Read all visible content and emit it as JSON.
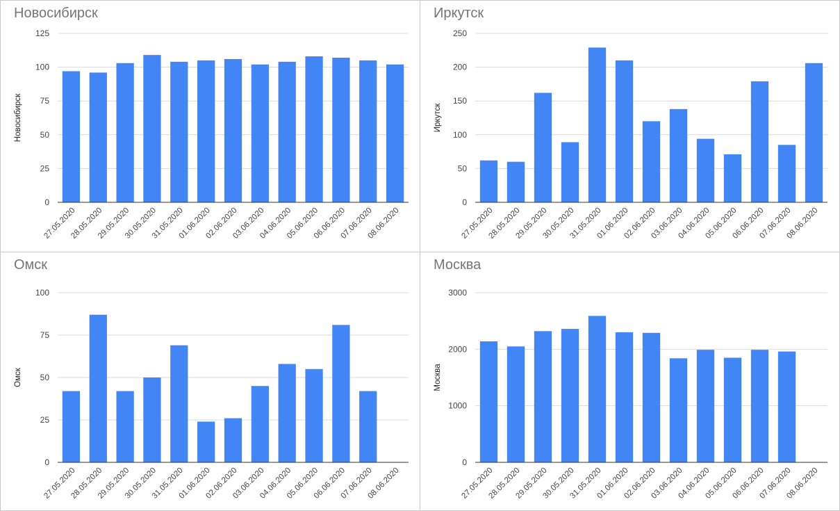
{
  "chart_data": [
    {
      "type": "bar",
      "title": "Новосибирск",
      "ylabel": "Новосибирск",
      "xlabel": "",
      "categories": [
        "27.05.2020",
        "28.05.2020",
        "29.05.2020",
        "30.05.2020",
        "31.05.2020",
        "01.06.2020",
        "02.06.2020",
        "03.06.2020",
        "04.06.2020",
        "05.06.2020",
        "06.06.2020",
        "07.06.2020",
        "08.06.2020"
      ],
      "values": [
        97,
        96,
        103,
        109,
        104,
        105,
        106,
        102,
        104,
        108,
        107,
        105,
        102
      ],
      "ylim": [
        0,
        125
      ],
      "yticks": [
        "0",
        "25",
        "50",
        "75",
        "100",
        "125"
      ],
      "color": "#4285f4",
      "grid": true
    },
    {
      "type": "bar",
      "title": "Иркутск",
      "ylabel": "Иркутск",
      "xlabel": "",
      "categories": [
        "27.05.2020",
        "28.05.2020",
        "29.05.2020",
        "30.05.2020",
        "31.05.2020",
        "01.06.2020",
        "02.06.2020",
        "03.06.2020",
        "04.06.2020",
        "05.06.2020",
        "06.06.2020",
        "07.06.2020",
        "08.06.2020"
      ],
      "values": [
        62,
        60,
        162,
        89,
        229,
        210,
        120,
        138,
        94,
        71,
        179,
        85,
        206
      ],
      "ylim": [
        0,
        250
      ],
      "yticks": [
        "0",
        "50",
        "100",
        "150",
        "200",
        "250"
      ],
      "color": "#4285f4",
      "grid": true
    },
    {
      "type": "bar",
      "title": "Омск",
      "ylabel": "Омск",
      "xlabel": "",
      "categories": [
        "27.05.2020",
        "28.05.2020",
        "29.05.2020",
        "30.05.2020",
        "31.05.2020",
        "01.06.2020",
        "02.06.2020",
        "03.06.2020",
        "04.06.2020",
        "05.06.2020",
        "06.06.2020",
        "07.06.2020",
        "08.06.2020"
      ],
      "values": [
        42,
        87,
        42,
        50,
        69,
        24,
        26,
        45,
        58,
        55,
        81,
        42,
        0
      ],
      "ylim": [
        0,
        100
      ],
      "yticks": [
        "0",
        "25",
        "50",
        "75",
        "100"
      ],
      "color": "#4285f4",
      "grid": true
    },
    {
      "type": "bar",
      "title": "Москва",
      "ylabel": "Москва",
      "xlabel": "",
      "categories": [
        "27.05.2020",
        "28.05.2020",
        "29.05.2020",
        "30.05.2020",
        "31.05.2020",
        "01.06.2020",
        "02.06.2020",
        "03.06.2020",
        "04.06.2020",
        "05.06.2020",
        "06.06.2020",
        "07.06.2020",
        "08.06.2020"
      ],
      "values": [
        2140,
        2050,
        2320,
        2360,
        2590,
        2300,
        2290,
        1840,
        1990,
        1850,
        1990,
        1960,
        0
      ],
      "ylim": [
        0,
        3000
      ],
      "yticks": [
        "0",
        "1000",
        "2000",
        "3000"
      ],
      "color": "#4285f4",
      "grid": true
    }
  ]
}
